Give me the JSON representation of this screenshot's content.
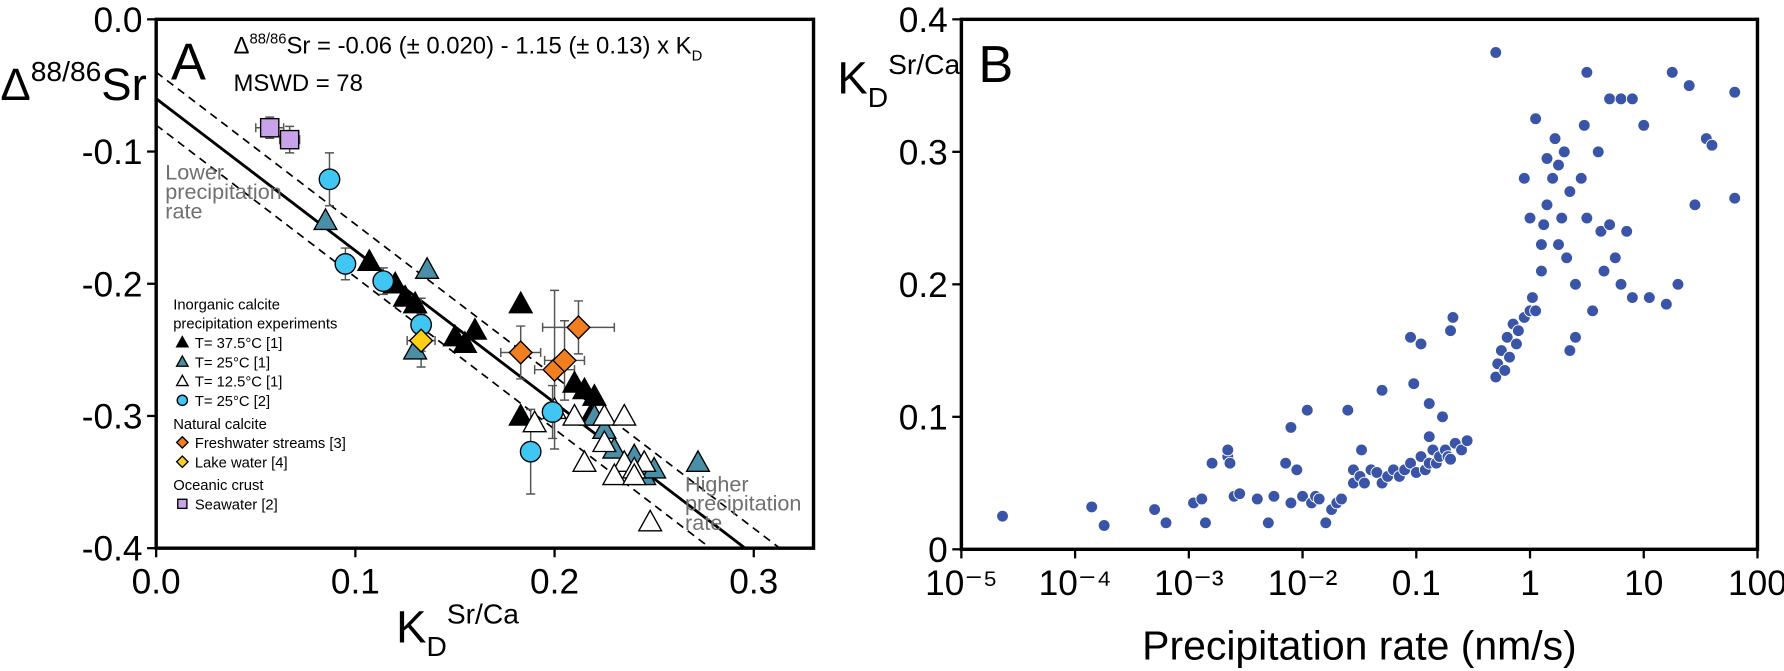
{
  "chart_data": [
    {
      "type": "scatter",
      "panel": "A",
      "xlabel": {
        "main": "K",
        "sub": "D",
        "sup": "Sr/Ca"
      },
      "ylabel": {
        "main": "Δ",
        "sup": "88/86",
        "rest": "Sr"
      },
      "xlim": [
        0,
        0.33
      ],
      "ylim": [
        -0.4,
        0
      ],
      "xticks": [
        {
          "value": 0,
          "label": "0.0"
        },
        0.1,
        0.2,
        0.3
      ],
      "yticks": [
        {
          "value": 0,
          "label": "0.0"
        },
        -0.1,
        -0.2,
        -0.3,
        -0.4
      ],
      "equation": {
        "lhs": "Δ",
        "lhs_sup": "88/86",
        "lhs_rest": "Sr = ",
        "intercept": -0.06,
        "t1": " (± ",
        "intercept_err": {
          "value": 0.02,
          "label": "0.020"
        },
        "t2": ") - ",
        "slope": 1.15,
        "t3": " (± ",
        "slope_err": 0.13,
        "t4": ") x K",
        "sub": "D"
      },
      "mswd": "MSWD = 78",
      "annotations": [
        [
          "Lower",
          "precipitation",
          "rate"
        ],
        [
          "Higher",
          "precipitation",
          "rate"
        ]
      ],
      "legend_headings": [
        [
          "Inorganic calcite",
          "precipitation experiments"
        ],
        [
          "Natural calcite"
        ],
        [
          "Oceanic crust"
        ]
      ],
      "series": [
        {
          "name": "T= 37.5°C [1]",
          "marker": "triangle",
          "color": "#000000",
          "x": [
            0.107,
            0.12,
            0.125,
            0.13,
            0.15,
            0.155,
            0.16,
            0.183,
            0.183,
            0.21,
            0.215,
            0.22,
            0.218,
            0.225
          ],
          "values": [
            -0.183,
            -0.2,
            -0.21,
            -0.215,
            -0.24,
            -0.245,
            -0.235,
            -0.215,
            -0.3,
            -0.275,
            -0.28,
            -0.285,
            -0.3,
            -0.31
          ]
        },
        {
          "name": "T= 25°C [1]",
          "marker": "triangle",
          "color": "#4a8fa8",
          "x": [
            0.085,
            0.136,
            0.13,
            0.22,
            0.225,
            0.23,
            0.24,
            0.245,
            0.25,
            0.272
          ],
          "values": [
            -0.152,
            -0.189,
            -0.25,
            -0.3,
            -0.31,
            -0.325,
            -0.33,
            -0.345,
            -0.34,
            -0.335
          ]
        },
        {
          "name": "T= 12.5°C [1]",
          "marker": "triangle",
          "color": "#ffffff",
          "x": [
            0.19,
            0.2,
            0.21,
            0.225,
            0.235,
            0.225,
            0.235,
            0.23,
            0.245,
            0.24,
            0.24,
            0.215,
            0.248
          ],
          "values": [
            -0.305,
            -0.295,
            -0.3,
            -0.3,
            -0.3,
            -0.32,
            -0.335,
            -0.345,
            -0.335,
            -0.34,
            -0.345,
            -0.335,
            -0.38
          ]
        },
        {
          "name": "T= 25°C [2]",
          "marker": "circle",
          "color": "#3fc6f2",
          "x": [
            0.087,
            0.095,
            0.114,
            0.133,
            0.199,
            0.188
          ],
          "values": [
            -0.121,
            -0.185,
            -0.198,
            -0.231,
            -0.297,
            -0.327
          ],
          "yerr": [
            0.02,
            0.012,
            0.01,
            0.02,
            0.02,
            0.032
          ]
        },
        {
          "name": "Freshwater streams [3]",
          "marker": "diamond",
          "color": "#f27f1f",
          "x": [
            0.183,
            0.2,
            0.205,
            0.212
          ],
          "values": [
            -0.252,
            -0.265,
            -0.258,
            -0.233
          ],
          "xerr": [
            0.01,
            0.01,
            0.01,
            0.018
          ],
          "yerr": [
            0.02,
            0.06,
            0.03,
            0.02
          ]
        },
        {
          "name": "Lake water [4]",
          "marker": "diamond",
          "color": "#fdd017",
          "x": [
            0.133
          ],
          "values": [
            -0.243
          ],
          "xerr": [
            0.007
          ],
          "yerr": [
            0.02
          ]
        },
        {
          "name": "Seawater [2]",
          "marker": "square",
          "color": "#c9a3ea",
          "x": [
            0.057,
            0.067
          ],
          "values": [
            -0.082,
            -0.091
          ],
          "xerr": [
            0.007,
            0.005
          ],
          "yerr": [
            0.008,
            0.01
          ]
        }
      ]
    },
    {
      "type": "scatter",
      "panel": "B",
      "xscale": "log",
      "xlabel": {
        "main": "Precipitation rate (nm/s)"
      },
      "ylabel": {
        "main": "K",
        "sub": "D",
        "sup": "Sr/Ca"
      },
      "xlim": [
        1e-05,
        100
      ],
      "ylim": [
        0,
        0.4
      ],
      "xticks": [
        {
          "value": 1e-05,
          "label": "10⁻⁵"
        },
        {
          "value": 0.0001,
          "label": "10⁻⁴"
        },
        {
          "value": 0.001,
          "label": "10⁻³"
        },
        {
          "value": 0.01,
          "label": "10⁻²"
        },
        0.1,
        1,
        10,
        100
      ],
      "yticks": [
        0,
        0.1,
        0.2,
        0.3,
        0.4
      ],
      "color": "#3a55a8",
      "x": [
        2.3e-05,
        0.00014,
        0.00018,
        0.0005,
        0.00063,
        0.0011,
        0.0013,
        0.0014,
        0.0016,
        0.0022,
        0.0022,
        0.0023,
        0.0025,
        0.0028,
        0.004,
        0.005,
        0.0056,
        0.0071,
        0.0079,
        0.0079,
        0.0089,
        0.01,
        0.011,
        0.012,
        0.013,
        0.014,
        0.016,
        0.018,
        0.02,
        0.022,
        0.025,
        0.028,
        0.028,
        0.032,
        0.033,
        0.035,
        0.04,
        0.045,
        0.05,
        0.05,
        0.056,
        0.063,
        0.071,
        0.079,
        0.089,
        0.095,
        0.1,
        0.11,
        0.12,
        0.13,
        0.13,
        0.13,
        0.14,
        0.15,
        0.16,
        0.17,
        0.18,
        0.19,
        0.2,
        0.22,
        0.25,
        0.28,
        0.089,
        0.11,
        0.2,
        0.21,
        0.5,
        0.52,
        0.56,
        0.6,
        0.63,
        0.66,
        0.71,
        0.76,
        0.79,
        0.89,
        0.5,
        1,
        1.05,
        1.12,
        1.26,
        1.26,
        1.32,
        1.41,
        1.58,
        1.66,
        1.78,
        1.9,
        2,
        2.1,
        2.24,
        2.51,
        2.82,
        3,
        3.16,
        3.55,
        3.98,
        4.2,
        4.47,
        5.01,
        5.62,
        6.31,
        7.08,
        7.94,
        11.2,
        15.8,
        20,
        3.16,
        5.01,
        6.31,
        7.94,
        10,
        17.8,
        25.1,
        28.2,
        35.5,
        39.8,
        63.1,
        63.1,
        2.24,
        2.51,
        1.12,
        0.89,
        1,
        1.41,
        1.78
      ],
      "values": [
        0.025,
        0.032,
        0.018,
        0.03,
        0.02,
        0.035,
        0.038,
        0.02,
        0.065,
        0.07,
        0.075,
        0.065,
        0.04,
        0.042,
        0.038,
        0.02,
        0.04,
        0.065,
        0.035,
        0.092,
        0.06,
        0.04,
        0.105,
        0.035,
        0.04,
        0.038,
        0.02,
        0.03,
        0.035,
        0.038,
        0.105,
        0.05,
        0.06,
        0.055,
        0.075,
        0.05,
        0.06,
        0.058,
        0.12,
        0.05,
        0.055,
        0.06,
        0.055,
        0.06,
        0.065,
        0.125,
        0.058,
        0.07,
        0.06,
        0.085,
        0.11,
        0.065,
        0.075,
        0.065,
        0.07,
        0.1,
        0.075,
        0.07,
        0.068,
        0.08,
        0.075,
        0.082,
        0.16,
        0.155,
        0.165,
        0.175,
        0.13,
        0.14,
        0.15,
        0.135,
        0.16,
        0.145,
        0.17,
        0.155,
        0.165,
        0.175,
        0.375,
        0.18,
        0.19,
        0.18,
        0.21,
        0.23,
        0.245,
        0.26,
        0.28,
        0.31,
        0.29,
        0.25,
        0.3,
        0.22,
        0.27,
        0.2,
        0.28,
        0.32,
        0.25,
        0.18,
        0.3,
        0.24,
        0.21,
        0.245,
        0.22,
        0.2,
        0.24,
        0.19,
        0.19,
        0.185,
        0.2,
        0.36,
        0.34,
        0.34,
        0.34,
        0.32,
        0.36,
        0.35,
        0.26,
        0.31,
        0.305,
        0.345,
        0.265,
        0.15,
        0.16,
        0.325,
        0.28,
        0.25,
        0.295,
        0.23
      ]
    }
  ]
}
